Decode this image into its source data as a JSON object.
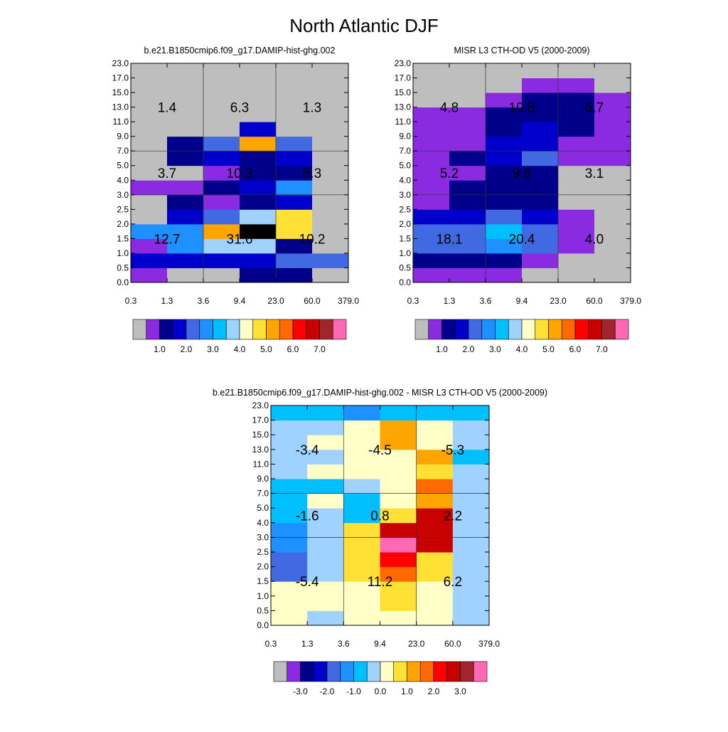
{
  "title": "North Atlantic DJF",
  "chart_data": [
    {
      "type": "heatmap",
      "title": "b.e21.B1850cmip6.f09_g17.DAMIP-hist-ghg.002",
      "xticks": [
        "0.3",
        "1.3",
        "3.6",
        "9.4",
        "23.0",
        "60.0",
        "379.0"
      ],
      "yticks": [
        "0.0",
        "0.5",
        "1.0",
        "1.5",
        "2.0",
        "2.5",
        "3.0",
        "4.0",
        "5.0",
        "7.0",
        "9.0",
        "11.0",
        "13.0",
        "15.0",
        "17.0",
        "23.0"
      ],
      "grid": true,
      "cells": [
        [
          1,
          0,
          0,
          2,
          2,
          0
        ],
        [
          3,
          3,
          3,
          3,
          4,
          4
        ],
        [
          1,
          5,
          7,
          7,
          2,
          0
        ],
        [
          5,
          5,
          10,
          19,
          9,
          0
        ],
        [
          0,
          3,
          4,
          7,
          9,
          0
        ],
        [
          0,
          2,
          1,
          2,
          3,
          0
        ],
        [
          1,
          1,
          2,
          3,
          5,
          0
        ],
        [
          0,
          0,
          1,
          2,
          2,
          0
        ],
        [
          0,
          2,
          3,
          2,
          3,
          0
        ],
        [
          0,
          2,
          4,
          10,
          4,
          0
        ],
        [
          0,
          0,
          0,
          3,
          0,
          0
        ],
        [
          0,
          0,
          0,
          0,
          0,
          0
        ],
        [
          0,
          0,
          0,
          0,
          0,
          0
        ],
        [
          0,
          0,
          0,
          0,
          0,
          0
        ],
        [
          0,
          0,
          0,
          0,
          0,
          0
        ]
      ],
      "region_values": [
        [
          "12.7",
          "31.6",
          "10.2"
        ],
        [
          "3.7",
          "10.3",
          "5.3"
        ],
        [
          "1.4",
          "6.3",
          "1.3"
        ]
      ],
      "colorbar": {
        "colors": [
          "#bebebe",
          "#8a2be2",
          "#00008b",
          "#0000cd",
          "#4169e1",
          "#1e90ff",
          "#00bfff",
          "#a0d2ff",
          "#ffffc8",
          "#ffe135",
          "#ffa500",
          "#ff6a00",
          "#ff0000",
          "#c80000",
          "#a0262c",
          "#ff69b4"
        ],
        "labels": [
          "1.0",
          "2.0",
          "3.0",
          "4.0",
          "5.0",
          "6.0",
          "7.0"
        ]
      }
    },
    {
      "type": "heatmap",
      "title": "MISR L3 CTH-OD V5 (2000-2009)",
      "xticks": [
        "0.3",
        "1.3",
        "3.6",
        "9.4",
        "23.0",
        "60.0",
        "379.0"
      ],
      "yticks": [
        "0.0",
        "0.5",
        "1.0",
        "1.5",
        "2.0",
        "2.5",
        "3.0",
        "4.0",
        "5.0",
        "7.0",
        "9.0",
        "11.0",
        "13.0",
        "15.0",
        "17.0",
        "23.0"
      ],
      "grid": true,
      "cells": [
        [
          1,
          1,
          1,
          0,
          0,
          0
        ],
        [
          2,
          2,
          2,
          1,
          0,
          0
        ],
        [
          4,
          4,
          5,
          4,
          1,
          0
        ],
        [
          4,
          4,
          6,
          4,
          1,
          0
        ],
        [
          3,
          3,
          4,
          3,
          1,
          0
        ],
        [
          1,
          2,
          2,
          2,
          0,
          0
        ],
        [
          1,
          2,
          2,
          2,
          0,
          0
        ],
        [
          1,
          1,
          2,
          2,
          0,
          0
        ],
        [
          1,
          2,
          3,
          4,
          1,
          1
        ],
        [
          1,
          1,
          3,
          3,
          1,
          1
        ],
        [
          1,
          1,
          2,
          3,
          2,
          1
        ],
        [
          1,
          1,
          2,
          2,
          2,
          1
        ],
        [
          0,
          0,
          1,
          2,
          2,
          1
        ],
        [
          0,
          0,
          0,
          1,
          1,
          0
        ],
        [
          0,
          0,
          0,
          0,
          0,
          0
        ]
      ],
      "region_values": [
        [
          "18.1",
          "20.4",
          "4.0"
        ],
        [
          "5.2",
          "9.6",
          "3.1"
        ],
        [
          "4.8",
          "10.8",
          "6.7"
        ]
      ],
      "colorbar": {
        "colors": [
          "#bebebe",
          "#8a2be2",
          "#00008b",
          "#0000cd",
          "#4169e1",
          "#1e90ff",
          "#00bfff",
          "#a0d2ff",
          "#ffffc8",
          "#ffe135",
          "#ffa500",
          "#ff6a00",
          "#ff0000",
          "#c80000",
          "#a0262c",
          "#ff69b4"
        ],
        "labels": [
          "1.0",
          "2.0",
          "3.0",
          "4.0",
          "5.0",
          "6.0",
          "7.0"
        ]
      }
    },
    {
      "type": "heatmap",
      "title": "b.e21.B1850cmip6.f09_g17.DAMIP-hist-ghg.002 - MISR L3 CTH-OD V5 (2000-2009)",
      "xticks": [
        "0.3",
        "1.3",
        "3.6",
        "9.4",
        "23.0",
        "60.0",
        "379.0"
      ],
      "yticks": [
        "0.0",
        "0.5",
        "1.0",
        "1.5",
        "2.0",
        "2.5",
        "3.0",
        "4.0",
        "5.0",
        "7.0",
        "9.0",
        "11.0",
        "13.0",
        "15.0",
        "17.0",
        "23.0"
      ],
      "grid": true,
      "cells": [
        [
          8,
          7,
          8,
          8,
          8,
          7
        ],
        [
          8,
          8,
          8,
          9,
          8,
          7
        ],
        [
          8,
          8,
          8,
          9,
          8,
          7
        ],
        [
          4,
          7,
          9,
          11,
          9,
          7
        ],
        [
          4,
          7,
          9,
          12,
          9,
          7
        ],
        [
          5,
          7,
          9,
          15,
          13,
          7
        ],
        [
          5,
          7,
          9,
          13,
          13,
          7
        ],
        [
          6,
          7,
          6,
          9,
          13,
          7
        ],
        [
          6,
          8,
          6,
          8,
          10,
          7
        ],
        [
          6,
          6,
          7,
          8,
          11,
          7
        ],
        [
          7,
          8,
          8,
          8,
          9,
          7
        ],
        [
          7,
          7,
          8,
          8,
          10,
          6
        ],
        [
          7,
          8,
          8,
          10,
          8,
          7
        ],
        [
          7,
          7,
          8,
          10,
          8,
          7
        ],
        [
          6,
          6,
          5,
          6,
          6,
          6
        ]
      ],
      "region_values": [
        [
          "-5.4",
          "11.2",
          "6.2"
        ],
        [
          "-1.6",
          "0.8",
          "2.2"
        ],
        [
          "-3.4",
          "-4.5",
          "-5.3"
        ]
      ],
      "colorbar": {
        "colors": [
          "#bebebe",
          "#8a2be2",
          "#00008b",
          "#0000cd",
          "#4169e1",
          "#1e90ff",
          "#00bfff",
          "#a0d2ff",
          "#ffffc8",
          "#ffe135",
          "#ffa500",
          "#ff6a00",
          "#ff0000",
          "#c80000",
          "#a0262c",
          "#ff69b4"
        ],
        "labels": [
          "-3.0",
          "-2.0",
          "-1.0",
          "0.0",
          "1.0",
          "2.0",
          "3.0"
        ]
      }
    }
  ]
}
